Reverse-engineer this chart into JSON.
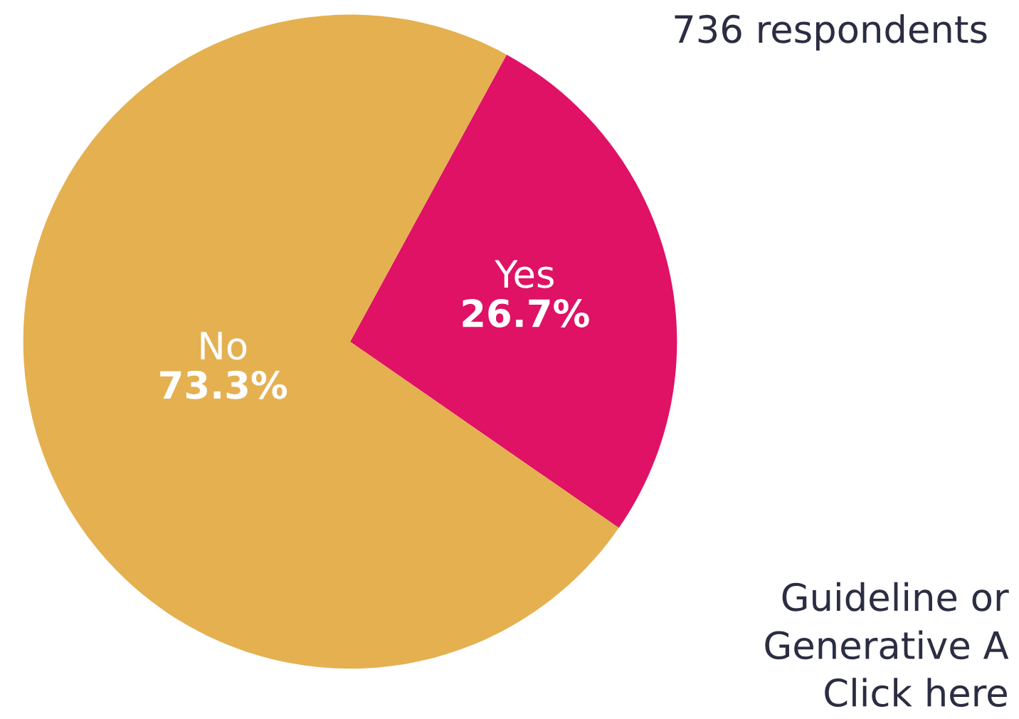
{
  "chart_data": {
    "type": "pie",
    "categories": [
      "Yes",
      "No"
    ],
    "values": [
      26.7,
      73.3
    ],
    "value_labels": [
      "26.7%",
      "73.3%"
    ],
    "colors": [
      "#df1265",
      "#e4b050"
    ],
    "annotations": [
      "736 respondents",
      "Guideline or",
      "Generative A",
      "Click here"
    ]
  }
}
